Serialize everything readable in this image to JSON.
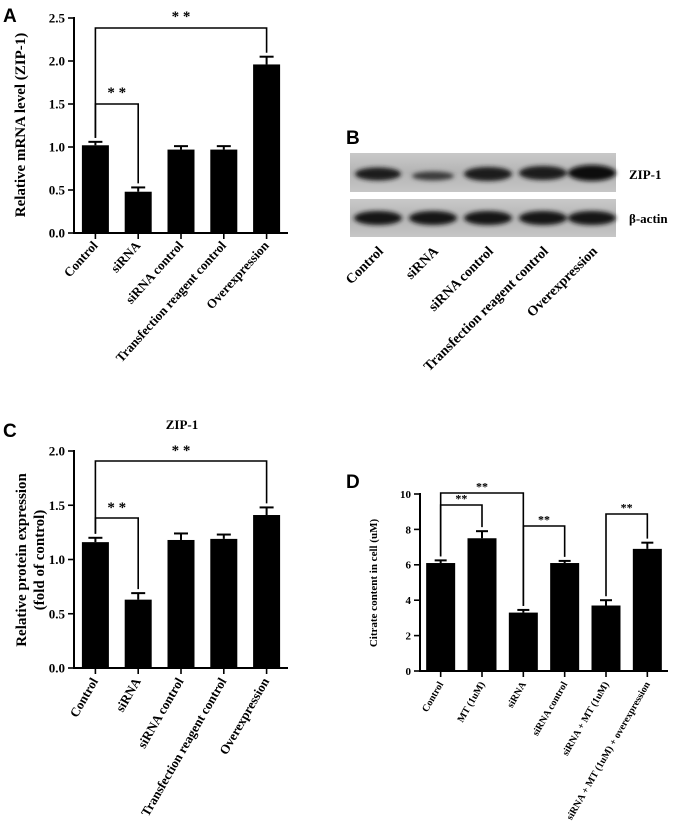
{
  "panels": {
    "A": "A",
    "B": "B",
    "C": "C",
    "D": "D"
  },
  "western_blot": {
    "lanes": [
      "Control",
      "siRNA",
      "siRNA control",
      "Transfection reagent control",
      "Overexpression"
    ],
    "rows": [
      "ZIP-1",
      "β-actin"
    ]
  },
  "chart_data": [
    {
      "id": "A",
      "type": "bar",
      "title": "",
      "ylabel": "Relative mRNA level (ZIP-1)",
      "xlabel": "",
      "categories": [
        "Control",
        "siRNA",
        "siRNA control",
        "Transfection reagent control",
        "Overexpression"
      ],
      "values": [
        1.02,
        0.48,
        0.97,
        0.97,
        1.96
      ],
      "errors": [
        0.04,
        0.05,
        0.04,
        0.04,
        0.09
      ],
      "ylim": [
        0,
        2.5
      ],
      "yticks": [
        0.0,
        0.5,
        1.0,
        1.5,
        2.0,
        2.5
      ],
      "ytick_labels": [
        "0.0",
        "0.5",
        "1.0",
        "1.5",
        "2.0",
        "2.5"
      ],
      "significance": [
        {
          "from": 0,
          "to": 1,
          "label": "* *"
        },
        {
          "from": 0,
          "to": 4,
          "label": "* *"
        }
      ]
    },
    {
      "id": "C",
      "type": "bar",
      "title": "ZIP-1",
      "ylabel": "Relative protein expression",
      "ylabel2": "(fold of control)",
      "xlabel": "",
      "categories": [
        "Control",
        "siRNA",
        "siRNA control",
        "Transfection reagent control",
        "Overexpression"
      ],
      "values": [
        1.16,
        0.63,
        1.18,
        1.19,
        1.41
      ],
      "errors": [
        0.04,
        0.06,
        0.06,
        0.04,
        0.07
      ],
      "ylim": [
        0,
        2.0
      ],
      "yticks": [
        0.0,
        0.5,
        1.0,
        1.5,
        2.0
      ],
      "ytick_labels": [
        "0.0",
        "0.5",
        "1.0",
        "1.5",
        "2.0"
      ],
      "significance": [
        {
          "from": 0,
          "to": 1,
          "label": "* *"
        },
        {
          "from": 0,
          "to": 4,
          "label": "* *"
        }
      ]
    },
    {
      "id": "D",
      "type": "bar",
      "title": "",
      "ylabel": "Citrate content in cell  (uM)",
      "xlabel": "",
      "categories": [
        "Control",
        "MT (1uM)",
        "siRNA",
        "siRNA control",
        "siRNA + MT (1uM)",
        "siRNA + MT (1uM) + overexpression"
      ],
      "values": [
        6.1,
        7.5,
        3.3,
        6.1,
        3.7,
        6.9
      ],
      "errors": [
        0.15,
        0.4,
        0.15,
        0.12,
        0.3,
        0.35
      ],
      "ylim": [
        0,
        10
      ],
      "yticks": [
        0,
        2,
        4,
        6,
        8,
        10
      ],
      "ytick_labels": [
        "0",
        "2",
        "4",
        "6",
        "8",
        "10"
      ],
      "significance": [
        {
          "from": 0,
          "to": 1,
          "label": "**"
        },
        {
          "from": 0,
          "to": 2,
          "label": "**"
        },
        {
          "from": 2,
          "to": 3,
          "label": "**"
        },
        {
          "from": 4,
          "to": 5,
          "label": "**"
        }
      ]
    }
  ]
}
